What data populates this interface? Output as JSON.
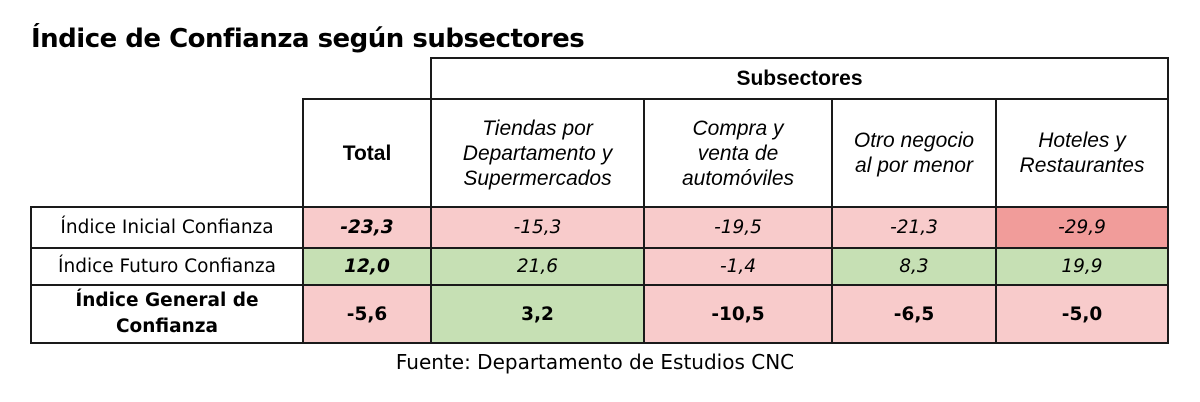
{
  "title": "Índice de Confianza según subsectores",
  "table": {
    "group_header": "Subsectores",
    "columns": [
      {
        "label": "Total"
      },
      {
        "label": "Tiendas por Departamento y Supermercados"
      },
      {
        "label": "Compra y venta de automóviles"
      },
      {
        "label": "Otro negocio al por menor"
      },
      {
        "label": "Hoteles y Restaurantes"
      }
    ],
    "rows": [
      {
        "label": "Índice Inicial Confianza",
        "values": [
          "-23,3",
          "-15,3",
          "-19,5",
          "-21,3",
          "-29,9"
        ]
      },
      {
        "label": "Índice Futuro Confianza",
        "values": [
          "12,0",
          "21,6",
          "-1,4",
          "8,3",
          "19,9"
        ]
      },
      {
        "label": "Índice General de Confianza",
        "values": [
          "-5,6",
          "3,2",
          "-10,5",
          "-6,5",
          "-5,0"
        ]
      }
    ]
  },
  "colors": {
    "negative": "#f8cbcb",
    "strong_negative": "#f19c9a",
    "positive": "#c6e0b4"
  },
  "source": "Fuente: Departamento de Estudios CNC"
}
